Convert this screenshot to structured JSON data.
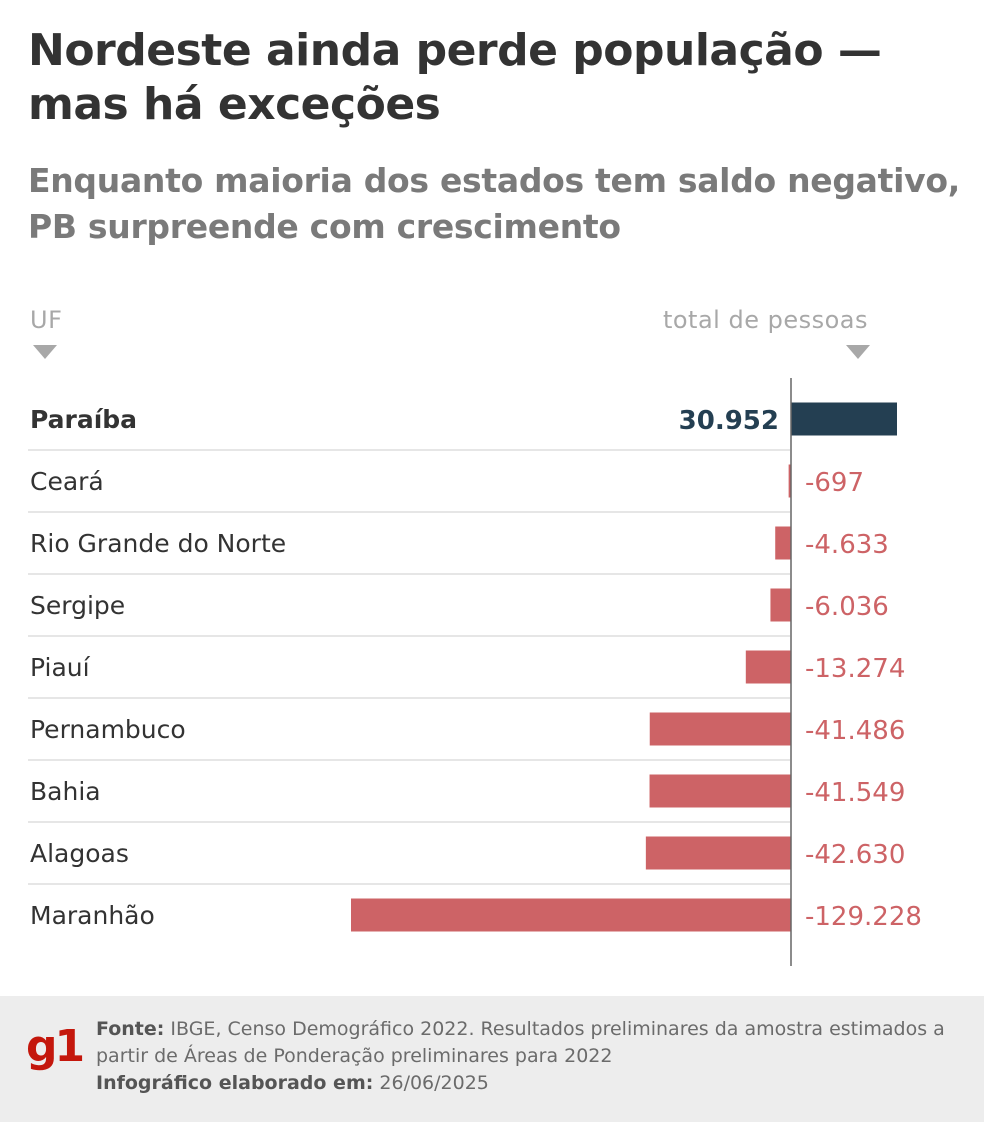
{
  "title": "Nordeste ainda perde população — mas há exceções",
  "subtitle": "Enquanto maioria dos estados tem saldo negativo, PB surpreende com crescimento",
  "column_headers": {
    "left": "UF",
    "right": "total de pessoas"
  },
  "colors": {
    "positive": "#243f52",
    "negative": "#cd6366",
    "divider": "#dddddd",
    "axis": "#666666"
  },
  "chart_data": {
    "type": "bar",
    "orientation": "horizontal",
    "title": "Nordeste ainda perde população — mas há exceções",
    "xlabel": "total de pessoas",
    "ylabel": "UF",
    "xlim": [
      -129228,
      30952
    ],
    "categories": [
      "Paraíba",
      "Ceará",
      "Rio Grande do Norte",
      "Sergipe",
      "Piauí",
      "Pernambuco",
      "Bahia",
      "Alagoas",
      "Maranhão"
    ],
    "values": [
      30952,
      -697,
      -4633,
      -6036,
      -13274,
      -41486,
      -41549,
      -42630,
      -129228
    ],
    "value_labels": [
      "30.952",
      "-697",
      "-4.633",
      "-6.036",
      "-13.274",
      "-41.486",
      "-41.549",
      "-42.630",
      "-129.228"
    ],
    "highlight": "Paraíba"
  },
  "footer": {
    "logo": "g1",
    "source_label": "Fonte:",
    "source_text": "IBGE, Censo Demográfico 2022. Resultados preliminares da amostra estimados a partir de Áreas de Ponderação preliminares para 2022",
    "date_label": "Infográfico elaborado em:",
    "date_text": "26/06/2025"
  }
}
